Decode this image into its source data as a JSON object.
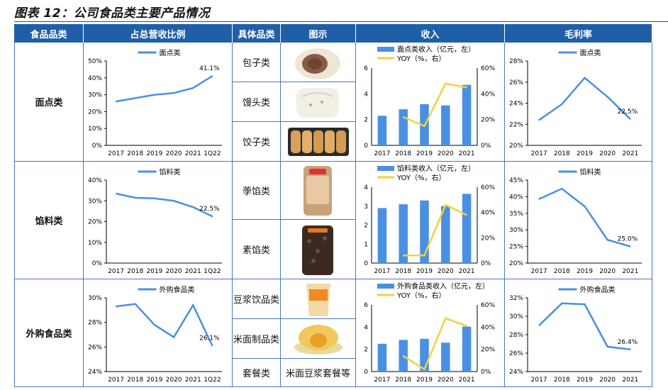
{
  "title": "图表 12：公司食品类主要产品情况",
  "headers": [
    "食品品类",
    "占总营收比例",
    "具体品类",
    "图示",
    "收入",
    "毛利率"
  ],
  "rows": [
    {
      "category": "面点类",
      "subs": [
        "包子类",
        "馒头类",
        "饺子类"
      ]
    },
    {
      "category": "馅料类",
      "subs": [
        "荸馅类",
        "素馅类"
      ]
    },
    {
      "category": "外购食品类",
      "subs": [
        "豆浆饮品类",
        "米面制品类",
        "套餐类"
      ]
    }
  ],
  "image_caption": "米面豆浆套餐等",
  "colors": {
    "line": "#4a90e2",
    "bar": "#4a90e2",
    "yoy": "#f4d03f",
    "header": "#1f5fa8",
    "border": "#4a78b8"
  },
  "chart_data": [
    {
      "id": "share-mian",
      "type": "line",
      "legend": "面点类",
      "x": [
        "2017",
        "2018",
        "2019",
        "2020",
        "2021",
        "1Q22"
      ],
      "values": [
        0.26,
        0.28,
        0.3,
        0.31,
        0.34,
        0.411
      ],
      "ylim": [
        0,
        0.5
      ],
      "yticks": [
        "0%",
        "10%",
        "20%",
        "30%",
        "40%",
        "50%"
      ],
      "ann": "41.1%"
    },
    {
      "id": "rev-mian",
      "type": "bar+line",
      "legend_bar": "面点类收入（亿元，左）",
      "legend_line": "YOY（%，右）",
      "x": [
        "2017",
        "2018",
        "2019",
        "2020",
        "2021"
      ],
      "bars": [
        2.3,
        2.8,
        3.2,
        3.1,
        4.7
      ],
      "yoy": [
        null,
        0.22,
        0.15,
        0.48,
        0.45
      ],
      "ylim": [
        0,
        6
      ],
      "yticks": [
        "0",
        "2",
        "4",
        "6"
      ],
      "y2lim": [
        0,
        0.6
      ],
      "y2ticks": [
        "0%",
        "20%",
        "40%",
        "60%"
      ]
    },
    {
      "id": "gm-mian",
      "type": "line",
      "legend": "面点类",
      "x": [
        "2017",
        "2018",
        "2019",
        "2020",
        "2021"
      ],
      "values": [
        0.224,
        0.239,
        0.264,
        0.246,
        0.225
      ],
      "ylim": [
        0.2,
        0.28
      ],
      "yticks": [
        "20%",
        "22%",
        "24%",
        "26%",
        "28%"
      ],
      "ann": "22.5%"
    },
    {
      "id": "share-xian",
      "type": "line",
      "legend": "馅料类",
      "x": [
        "2017",
        "2018",
        "2019",
        "2020",
        "2021",
        "1Q22"
      ],
      "values": [
        0.335,
        0.315,
        0.312,
        0.3,
        0.27,
        0.225
      ],
      "ylim": [
        0,
        0.4
      ],
      "yticks": [
        "0%",
        "10%",
        "20%",
        "30%",
        "40%"
      ],
      "ann": "22.5%"
    },
    {
      "id": "rev-xian",
      "type": "bar+line",
      "legend_bar": "馅料类收入（亿元，左）",
      "legend_line": "YOY（%，右）",
      "x": [
        "2017",
        "2018",
        "2019",
        "2020",
        "2021"
      ],
      "bars": [
        2.9,
        3.1,
        3.3,
        3.0,
        3.65
      ],
      "yoy": [
        null,
        0.06,
        0.06,
        0.46,
        0.38
      ],
      "ylim": [
        0,
        4
      ],
      "yticks": [
        "0",
        "1",
        "2",
        "3",
        "4"
      ],
      "y2lim": [
        0,
        0.6
      ],
      "y2ticks": [
        "0%",
        "20%",
        "40%",
        "60%"
      ]
    },
    {
      "id": "gm-xian",
      "type": "line",
      "legend": "馅料类",
      "x": [
        "2017",
        "2018",
        "2019",
        "2020",
        "2021"
      ],
      "values": [
        0.393,
        0.424,
        0.371,
        0.27,
        0.25
      ],
      "ylim": [
        0.2,
        0.45
      ],
      "yticks": [
        "20%",
        "25%",
        "30%",
        "35%",
        "40%",
        "45%"
      ],
      "ann": "25.0%"
    },
    {
      "id": "share-wg",
      "type": "line",
      "legend": "外购食品类",
      "x": [
        "2017",
        "2018",
        "2019",
        "2020",
        "2021",
        "1Q22"
      ],
      "values": [
        0.293,
        0.295,
        0.278,
        0.268,
        0.294,
        0.261
      ],
      "ylim": [
        0.24,
        0.3
      ],
      "yticks": [
        "24%",
        "26%",
        "28%",
        "30%"
      ],
      "ann": "26.1%"
    },
    {
      "id": "rev-wg",
      "type": "bar+line",
      "legend_bar": "外购食品类收入（亿元，左）",
      "legend_line": "YOY（%，右）",
      "x": [
        "2017",
        "2018",
        "2019",
        "2020",
        "2021"
      ],
      "bars": [
        2.5,
        2.85,
        2.95,
        2.6,
        4.05
      ],
      "yoy": [
        null,
        0.14,
        0.02,
        0.48,
        0.41
      ],
      "ylim": [
        0,
        6
      ],
      "yticks": [
        "0",
        "2",
        "4",
        "6"
      ],
      "y2lim": [
        0,
        0.6
      ],
      "y2ticks": [
        "0%",
        "20%",
        "40%",
        "60%"
      ]
    },
    {
      "id": "gm-wg",
      "type": "line",
      "legend": "外购食品类",
      "x": [
        "2017",
        "2018",
        "2019",
        "2020",
        "2021"
      ],
      "values": [
        0.29,
        0.314,
        0.313,
        0.267,
        0.264
      ],
      "ylim": [
        0.24,
        0.32
      ],
      "yticks": [
        "24%",
        "26%",
        "28%",
        "30%",
        "32%"
      ],
      "ann": "26.4%"
    }
  ]
}
